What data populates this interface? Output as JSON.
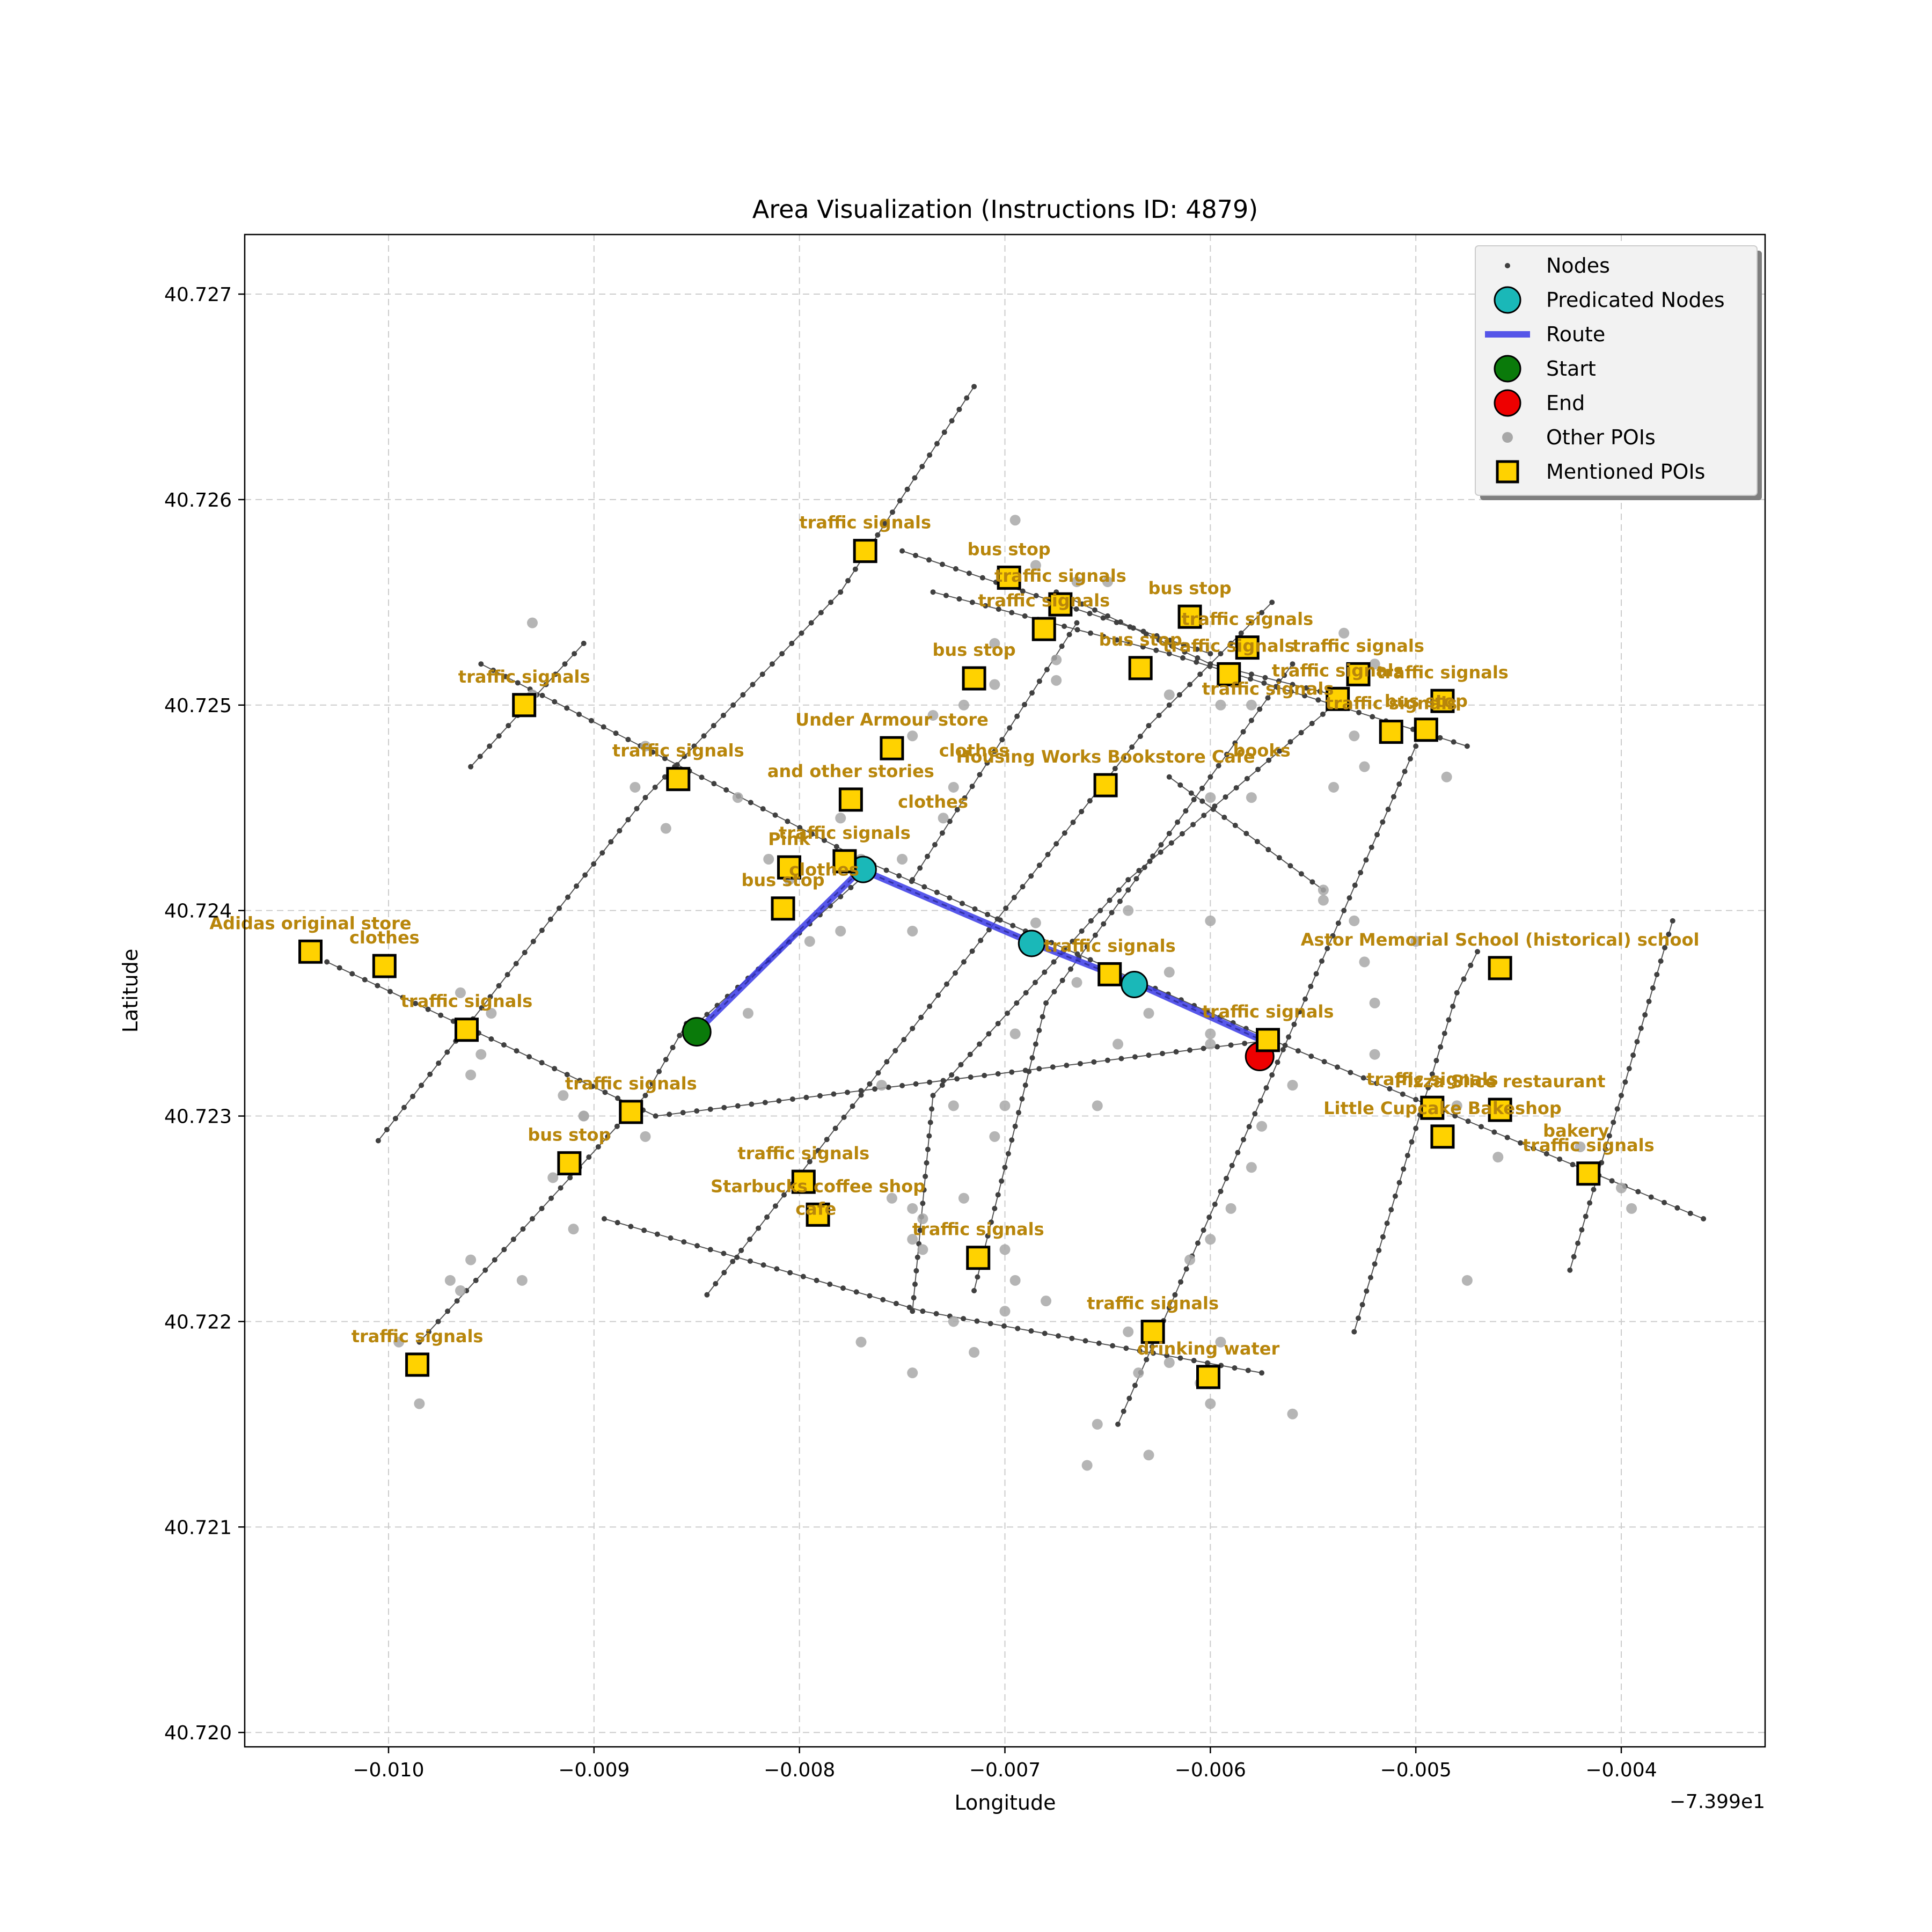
{
  "chart_data": {
    "type": "scatter",
    "title": "Area Visualization (Instructions ID: 4879)",
    "xlabel": "Longitude",
    "ylabel": "Latitude",
    "x_offset_label": "−7.399e1",
    "xlim": [
      -0.0107,
      -0.0033
    ],
    "ylim": [
      40.71993,
      40.72729
    ],
    "xticks": [
      -0.01,
      -0.009,
      -0.008,
      -0.007,
      -0.006,
      -0.005,
      -0.004
    ],
    "xtick_labels": [
      "−0.010",
      "−0.009",
      "−0.008",
      "−0.007",
      "−0.006",
      "−0.005",
      "−0.004"
    ],
    "yticks": [
      40.72,
      40.721,
      40.722,
      40.723,
      40.724,
      40.725,
      40.726,
      40.727
    ],
    "ytick_labels": [
      "40.720",
      "40.721",
      "40.722",
      "40.723",
      "40.724",
      "40.725",
      "40.726",
      "40.727"
    ],
    "grid": true,
    "legend": {
      "placement": "top-right",
      "entries": [
        "Nodes",
        "Predicated Nodes",
        "Route",
        "Start",
        "End",
        "Other POIs",
        "Mentioned POIs"
      ]
    },
    "colors": {
      "node": "#404040",
      "road": "#555555",
      "predicted": "#1ab8b8",
      "route": "#3a3ae6",
      "start": "#0a7a0a",
      "end": "#ee0000",
      "other_poi": "#a8a8a8",
      "poi_fill": "#ffd200",
      "poi_label": "#b8860b",
      "grid": "#cccccc"
    },
    "roads": [
      [
        [
          -0.0103,
          40.72375
        ],
        [
          -0.0087,
          40.723
        ],
        [
          -0.0057,
          40.72337
        ],
        [
          -0.0036,
          40.7225
        ]
      ],
      [
        [
          -0.00955,
          40.7252
        ],
        [
          -0.0077,
          40.72425
        ],
        [
          -0.0069,
          40.7239
        ],
        [
          -0.0057,
          40.72337
        ]
      ],
      [
        [
          -0.00735,
          40.72555
        ],
        [
          -0.0062,
          40.72525
        ],
        [
          -0.00475,
          40.7248
        ]
      ],
      [
        [
          -0.0075,
          40.72575
        ],
        [
          -0.006,
          40.72525
        ]
      ],
      [
        [
          -0.00675,
          40.72555
        ],
        [
          -0.006,
          40.7252
        ],
        [
          -0.0054,
          40.72505
        ]
      ],
      [
        [
          -0.00895,
          40.7225
        ],
        [
          -0.0074,
          40.72205
        ],
        [
          -0.00575,
          40.72175
        ]
      ],
      [
        [
          -0.0085,
          40.72345
        ],
        [
          -0.00765,
          40.7242
        ]
      ],
      [
        [
          -0.0062,
          40.72465
        ],
        [
          -0.00545,
          40.7241
        ]
      ],
      [
        [
          -0.01005,
          40.72288
        ],
        [
          -0.00875,
          40.72455
        ],
        [
          -0.0078,
          40.72555
        ],
        [
          -0.00715,
          40.72655
        ]
      ],
      [
        [
          -0.0096,
          40.7247
        ],
        [
          -0.00905,
          40.7253
        ]
      ],
      [
        [
          -0.00985,
          40.7219
        ],
        [
          -0.00875,
          40.7231
        ],
        [
          -0.00855,
          40.72345
        ]
      ],
      [
        [
          -0.00845,
          40.72213
        ],
        [
          -0.0072,
          40.72375
        ],
        [
          -0.0063,
          40.7249
        ],
        [
          -0.0057,
          40.7255
        ]
      ],
      [
        [
          -0.00745,
          40.72415
        ],
        [
          -0.00665,
          40.7254
        ]
      ],
      [
        [
          -0.00715,
          40.72215
        ],
        [
          -0.0068,
          40.72355
        ],
        [
          -0.0056,
          40.7252
        ]
      ],
      [
        [
          -0.00745,
          40.72205
        ],
        [
          -0.00735,
          40.7231
        ],
        [
          -0.0064,
          40.72415
        ],
        [
          -0.0054,
          40.725
        ]
      ],
      [
        [
          -0.00645,
          40.7215
        ],
        [
          -0.0057,
          40.7232
        ],
        [
          -0.005,
          40.7248
        ]
      ],
      [
        [
          -0.0053,
          40.72195
        ],
        [
          -0.0048,
          40.7236
        ],
        [
          -0.0047,
          40.7238
        ]
      ],
      [
        [
          -0.00425,
          40.72225
        ],
        [
          -0.00375,
          40.72395
        ]
      ]
    ],
    "route": [
      [
        -0.0085,
        40.72341
      ],
      [
        -0.0077,
        40.7242
      ],
      [
        -0.00686,
        40.72384
      ],
      [
        -0.00635,
        40.72364
      ],
      [
        -0.00573,
        40.72336
      ]
    ],
    "start": [
      -0.0085,
      40.72341
    ],
    "end": [
      -0.00576,
      40.72329
    ],
    "predicated_nodes": [
      [
        -0.00769,
        40.7242
      ],
      [
        -0.00687,
        40.72384
      ],
      [
        -0.00637,
        40.72364
      ]
    ],
    "other_pois": [
      [
        -0.00695,
        40.7259
      ],
      [
        -0.00685,
        40.72568
      ],
      [
        -0.00665,
        40.7256
      ],
      [
        -0.0065,
        40.7256
      ],
      [
        -0.00675,
        40.72522
      ],
      [
        -0.00675,
        40.72512
      ],
      [
        -0.00705,
        40.7253
      ],
      [
        -0.00705,
        40.7251
      ],
      [
        -0.0072,
        40.725
      ],
      [
        -0.00735,
        40.72495
      ],
      [
        -0.0093,
        40.7254
      ],
      [
        -0.0093,
        40.72505
      ],
      [
        -0.00875,
        40.7248
      ],
      [
        -0.0088,
        40.7246
      ],
      [
        -0.00865,
        40.7244
      ],
      [
        -0.0083,
        40.72455
      ],
      [
        -0.0078,
        40.72445
      ],
      [
        -0.0077,
        40.72425
      ],
      [
        -0.0075,
        40.72425
      ],
      [
        -0.00795,
        40.72385
      ],
      [
        -0.0078,
        40.7239
      ],
      [
        -0.00745,
        40.7239
      ],
      [
        -0.00685,
        40.72394
      ],
      [
        -0.0062,
        40.7237
      ],
      [
        -0.0064,
        40.724
      ],
      [
        -0.006,
        40.72395
      ],
      [
        -0.006,
        40.7234
      ],
      [
        -0.006,
        40.72335
      ],
      [
        -0.0063,
        40.7235
      ],
      [
        -0.00665,
        40.72365
      ],
      [
        -0.00645,
        40.72335
      ],
      [
        -0.00695,
        40.7234
      ],
      [
        -0.0076,
        40.72315
      ],
      [
        -0.0072,
        40.7226
      ],
      [
        -0.00705,
        40.7229
      ],
      [
        -0.007,
        40.72305
      ],
      [
        -0.00655,
        40.72305
      ],
      [
        -0.00725,
        40.72305
      ],
      [
        -0.00825,
        40.7235
      ],
      [
        -0.00875,
        40.7229
      ],
      [
        -0.00905,
        40.723
      ],
      [
        -0.00905,
        40.723
      ],
      [
        -0.00915,
        40.7231
      ],
      [
        -0.0092,
        40.7227
      ],
      [
        -0.0091,
        40.72245
      ],
      [
        -0.00935,
        40.7222
      ],
      [
        -0.00965,
        40.7236
      ],
      [
        -0.0095,
        40.7235
      ],
      [
        -0.00955,
        40.7233
      ],
      [
        -0.0096,
        40.7232
      ],
      [
        -0.00965,
        40.72215
      ],
      [
        -0.0096,
        40.7223
      ],
      [
        -0.0097,
        40.7222
      ],
      [
        -0.00995,
        40.7219
      ],
      [
        -0.00985,
        40.7216
      ],
      [
        -0.0074,
        40.7225
      ],
      [
        -0.00745,
        40.7224
      ],
      [
        -0.00745,
        40.72255
      ],
      [
        -0.0074,
        40.72235
      ],
      [
        -0.00755,
        40.7226
      ],
      [
        -0.007,
        40.72235
      ],
      [
        -0.00695,
        40.7222
      ],
      [
        -0.0068,
        40.7221
      ],
      [
        -0.00715,
        40.72185
      ],
      [
        -0.00725,
        40.722
      ],
      [
        -0.007,
        40.72205
      ],
      [
        -0.0077,
        40.7219
      ],
      [
        -0.00745,
        40.72175
      ],
      [
        -0.0064,
        40.72195
      ],
      [
        -0.00635,
        40.72175
      ],
      [
        -0.00605,
        40.7217
      ],
      [
        -0.00595,
        40.7219
      ],
      [
        -0.006,
        40.7216
      ],
      [
        -0.0062,
        40.7218
      ],
      [
        -0.00655,
        40.7215
      ],
      [
        -0.0063,
        40.72135
      ],
      [
        -0.0066,
        40.7213
      ],
      [
        -0.0056,
        40.72155
      ],
      [
        -0.0061,
        40.7223
      ],
      [
        -0.006,
        40.7224
      ],
      [
        -0.0059,
        40.72255
      ],
      [
        -0.0058,
        40.72275
      ],
      [
        -0.00575,
        40.72295
      ],
      [
        -0.0056,
        40.72315
      ],
      [
        -0.0052,
        40.7233
      ],
      [
        -0.0052,
        40.72355
      ],
      [
        -0.0053,
        40.72395
      ],
      [
        -0.00545,
        40.72405
      ],
      [
        -0.00525,
        40.72375
      ],
      [
        -0.005,
        40.72385
      ],
      [
        -0.00545,
        40.7241
      ],
      [
        -0.006,
        40.72455
      ],
      [
        -0.0058,
        40.72455
      ],
      [
        -0.0054,
        40.7246
      ],
      [
        -0.00525,
        40.7247
      ],
      [
        -0.0053,
        40.72485
      ],
      [
        -0.0051,
        40.72485
      ],
      [
        -0.00485,
        40.72465
      ],
      [
        -0.00535,
        40.72535
      ],
      [
        -0.0052,
        40.7252
      ],
      [
        -0.0062,
        40.72505
      ],
      [
        -0.00595,
        40.725
      ],
      [
        -0.0058,
        40.725
      ],
      [
        -0.0048,
        40.72305
      ],
      [
        -0.00485,
        40.7229
      ],
      [
        -0.0046,
        40.7228
      ],
      [
        -0.00475,
        40.7222
      ],
      [
        -0.0042,
        40.72285
      ],
      [
        -0.004,
        40.72265
      ],
      [
        -0.00395,
        40.72255
      ],
      [
        -0.00745,
        40.72485
      ],
      [
        -0.00725,
        40.7246
      ],
      [
        -0.0073,
        40.72445
      ],
      [
        -0.00815,
        40.72425
      ],
      [
        -0.00805,
        40.72415
      ]
    ],
    "mentioned_pois": [
      {
        "pos": [
          -0.00768,
          40.72575
        ],
        "label": "traffic signals"
      },
      {
        "pos": [
          -0.00698,
          40.72562
        ],
        "label": "bus stop"
      },
      {
        "pos": [
          -0.00673,
          40.72549
        ],
        "label": "traffic signals"
      },
      {
        "pos": [
          -0.00681,
          40.72537
        ],
        "label": "traffic signals"
      },
      {
        "pos": [
          -0.0061,
          40.72543
        ],
        "label": "bus stop"
      },
      {
        "pos": [
          -0.00582,
          40.72528
        ],
        "label": "traffic signals"
      },
      {
        "pos": [
          -0.00634,
          40.72518
        ],
        "label": "bus stop"
      },
      {
        "pos": [
          -0.00591,
          40.72515
        ],
        "label": "traffic signals"
      },
      {
        "pos": [
          -0.00528,
          40.72515
        ],
        "label": "traffic signals"
      },
      {
        "pos": [
          -0.00538,
          40.72503
        ],
        "label": "traffic signals"
      },
      {
        "pos": [
          -0.00487,
          40.72502
        ],
        "label": "traffic signals"
      },
      {
        "pos": [
          -0.00512,
          40.72487
        ],
        "label": "traffic signals"
      },
      {
        "pos": [
          -0.00495,
          40.72488
        ],
        "label": "bus stop"
      },
      {
        "pos": [
          -0.00715,
          40.72513
        ],
        "label": "bus stop"
      },
      {
        "pos": [
          -0.00934,
          40.725
        ],
        "label": "traffic signals"
      },
      {
        "pos": [
          -0.00755,
          40.72479
        ],
        "label": "Under Armour store"
      },
      {
        "pos": [
          -0.00859,
          40.72464
        ],
        "label": "traffic signals"
      },
      {
        "pos": [
          -0.00775,
          40.72454
        ],
        "label": "and other stories"
      },
      {
        "pos": [
          -0.00651,
          40.72461
        ],
        "label": "Housing Works Bookstore Cafe"
      },
      {
        "pos": [
          -0.00778,
          40.72424
        ],
        "label": "traffic signals"
      },
      {
        "pos": [
          -0.00805,
          40.72421
        ],
        "label": "Pink"
      },
      {
        "pos": [
          -0.00808,
          40.72401
        ],
        "label": "bus stop"
      },
      {
        "pos": [
          -0.01038,
          40.7238
        ],
        "label": "Adidas original store"
      },
      {
        "pos": [
          -0.01002,
          40.72373
        ],
        "label": "clothes"
      },
      {
        "pos": [
          -0.00649,
          40.72369
        ],
        "label": "traffic signals"
      },
      {
        "pos": [
          -0.00459,
          40.72372
        ],
        "label": "Astor Memorial School (historical) school"
      },
      {
        "pos": [
          -0.00962,
          40.72342
        ],
        "label": "traffic signals"
      },
      {
        "pos": [
          -0.00572,
          40.72337
        ],
        "label": "traffic signals"
      },
      {
        "pos": [
          -0.00882,
          40.72302
        ],
        "label": "traffic signals"
      },
      {
        "pos": [
          -0.00492,
          40.72304
        ],
        "label": "traffic signals"
      },
      {
        "pos": [
          -0.00459,
          40.72303
        ],
        "label": "Pizza Slice restaurant"
      },
      {
        "pos": [
          -0.00487,
          40.7229
        ],
        "label": "Little Cupcake Bakeshop"
      },
      {
        "pos": [
          -0.00912,
          40.72277
        ],
        "label": "bus stop"
      },
      {
        "pos": [
          -0.00416,
          40.72272
        ],
        "label": "traffic signals"
      },
      {
        "pos": [
          -0.00798,
          40.72268
        ],
        "label": "traffic signals"
      },
      {
        "pos": [
          -0.00791,
          40.72252
        ],
        "label": "Starbucks coffee shop"
      },
      {
        "pos": [
          -0.00713,
          40.72231
        ],
        "label": "traffic signals"
      },
      {
        "pos": [
          -0.00628,
          40.72195
        ],
        "label": "traffic signals"
      },
      {
        "pos": [
          -0.00601,
          40.72173
        ],
        "label": "drinking water"
      },
      {
        "pos": [
          -0.00986,
          40.72179
        ],
        "label": "traffic signals"
      }
    ],
    "floating_labels": [
      {
        "pos": [
          -0.00715,
          40.72475
        ],
        "label": "clothes"
      },
      {
        "pos": [
          -0.00735,
          40.7245
        ],
        "label": "clothes"
      },
      {
        "pos": [
          -0.00788,
          40.72417
        ],
        "label": "clothes"
      },
      {
        "pos": [
          -0.00575,
          40.72475
        ],
        "label": "books"
      },
      {
        "pos": [
          -0.00422,
          40.7229
        ],
        "label": "bakery"
      },
      {
        "pos": [
          -0.00572,
          40.72505
        ],
        "label": "traffic signals"
      },
      {
        "pos": [
          -0.00792,
          40.72252
        ],
        "label": "cafe"
      }
    ]
  }
}
